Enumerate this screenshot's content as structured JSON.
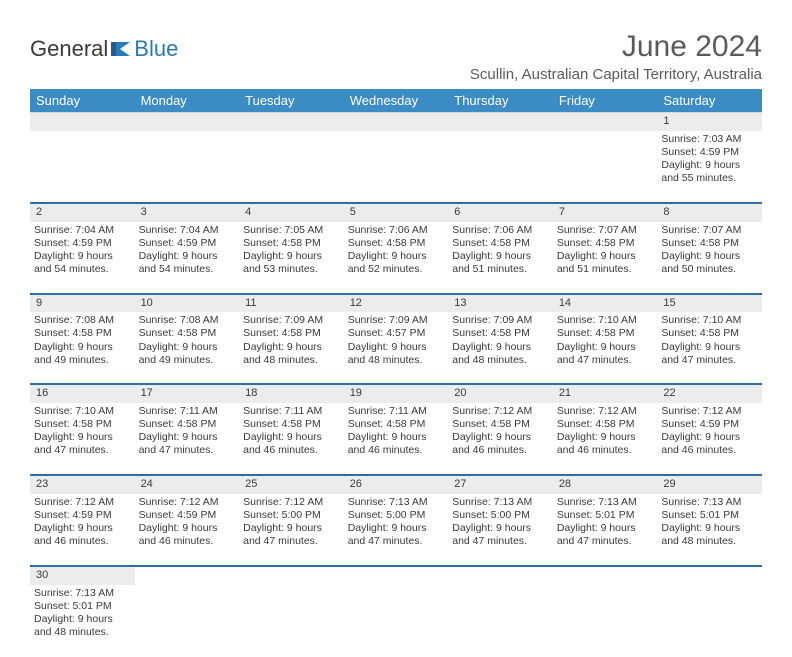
{
  "logo": {
    "text1": "General",
    "text2": "Blue"
  },
  "title": "June 2024",
  "location": "Scullin, Australian Capital Territory, Australia",
  "colors": {
    "header_bg": "#3b8bc4",
    "header_text": "#ffffff",
    "daynum_bg": "#ececec",
    "row_border": "#2a6fa8",
    "text": "#3a3a3a",
    "logo_gray": "#3a3a3a",
    "logo_blue": "#2a7ab8"
  },
  "weekdays": [
    "Sunday",
    "Monday",
    "Tuesday",
    "Wednesday",
    "Thursday",
    "Friday",
    "Saturday"
  ],
  "weeks": [
    [
      null,
      null,
      null,
      null,
      null,
      null,
      {
        "d": "1",
        "sr": "Sunrise: 7:03 AM",
        "ss": "Sunset: 4:59 PM",
        "dl1": "Daylight: 9 hours",
        "dl2": "and 55 minutes."
      }
    ],
    [
      {
        "d": "2",
        "sr": "Sunrise: 7:04 AM",
        "ss": "Sunset: 4:59 PM",
        "dl1": "Daylight: 9 hours",
        "dl2": "and 54 minutes."
      },
      {
        "d": "3",
        "sr": "Sunrise: 7:04 AM",
        "ss": "Sunset: 4:59 PM",
        "dl1": "Daylight: 9 hours",
        "dl2": "and 54 minutes."
      },
      {
        "d": "4",
        "sr": "Sunrise: 7:05 AM",
        "ss": "Sunset: 4:58 PM",
        "dl1": "Daylight: 9 hours",
        "dl2": "and 53 minutes."
      },
      {
        "d": "5",
        "sr": "Sunrise: 7:06 AM",
        "ss": "Sunset: 4:58 PM",
        "dl1": "Daylight: 9 hours",
        "dl2": "and 52 minutes."
      },
      {
        "d": "6",
        "sr": "Sunrise: 7:06 AM",
        "ss": "Sunset: 4:58 PM",
        "dl1": "Daylight: 9 hours",
        "dl2": "and 51 minutes."
      },
      {
        "d": "7",
        "sr": "Sunrise: 7:07 AM",
        "ss": "Sunset: 4:58 PM",
        "dl1": "Daylight: 9 hours",
        "dl2": "and 51 minutes."
      },
      {
        "d": "8",
        "sr": "Sunrise: 7:07 AM",
        "ss": "Sunset: 4:58 PM",
        "dl1": "Daylight: 9 hours",
        "dl2": "and 50 minutes."
      }
    ],
    [
      {
        "d": "9",
        "sr": "Sunrise: 7:08 AM",
        "ss": "Sunset: 4:58 PM",
        "dl1": "Daylight: 9 hours",
        "dl2": "and 49 minutes."
      },
      {
        "d": "10",
        "sr": "Sunrise: 7:08 AM",
        "ss": "Sunset: 4:58 PM",
        "dl1": "Daylight: 9 hours",
        "dl2": "and 49 minutes."
      },
      {
        "d": "11",
        "sr": "Sunrise: 7:09 AM",
        "ss": "Sunset: 4:58 PM",
        "dl1": "Daylight: 9 hours",
        "dl2": "and 48 minutes."
      },
      {
        "d": "12",
        "sr": "Sunrise: 7:09 AM",
        "ss": "Sunset: 4:57 PM",
        "dl1": "Daylight: 9 hours",
        "dl2": "and 48 minutes."
      },
      {
        "d": "13",
        "sr": "Sunrise: 7:09 AM",
        "ss": "Sunset: 4:58 PM",
        "dl1": "Daylight: 9 hours",
        "dl2": "and 48 minutes."
      },
      {
        "d": "14",
        "sr": "Sunrise: 7:10 AM",
        "ss": "Sunset: 4:58 PM",
        "dl1": "Daylight: 9 hours",
        "dl2": "and 47 minutes."
      },
      {
        "d": "15",
        "sr": "Sunrise: 7:10 AM",
        "ss": "Sunset: 4:58 PM",
        "dl1": "Daylight: 9 hours",
        "dl2": "and 47 minutes."
      }
    ],
    [
      {
        "d": "16",
        "sr": "Sunrise: 7:10 AM",
        "ss": "Sunset: 4:58 PM",
        "dl1": "Daylight: 9 hours",
        "dl2": "and 47 minutes."
      },
      {
        "d": "17",
        "sr": "Sunrise: 7:11 AM",
        "ss": "Sunset: 4:58 PM",
        "dl1": "Daylight: 9 hours",
        "dl2": "and 47 minutes."
      },
      {
        "d": "18",
        "sr": "Sunrise: 7:11 AM",
        "ss": "Sunset: 4:58 PM",
        "dl1": "Daylight: 9 hours",
        "dl2": "and 46 minutes."
      },
      {
        "d": "19",
        "sr": "Sunrise: 7:11 AM",
        "ss": "Sunset: 4:58 PM",
        "dl1": "Daylight: 9 hours",
        "dl2": "and 46 minutes."
      },
      {
        "d": "20",
        "sr": "Sunrise: 7:12 AM",
        "ss": "Sunset: 4:58 PM",
        "dl1": "Daylight: 9 hours",
        "dl2": "and 46 minutes."
      },
      {
        "d": "21",
        "sr": "Sunrise: 7:12 AM",
        "ss": "Sunset: 4:58 PM",
        "dl1": "Daylight: 9 hours",
        "dl2": "and 46 minutes."
      },
      {
        "d": "22",
        "sr": "Sunrise: 7:12 AM",
        "ss": "Sunset: 4:59 PM",
        "dl1": "Daylight: 9 hours",
        "dl2": "and 46 minutes."
      }
    ],
    [
      {
        "d": "23",
        "sr": "Sunrise: 7:12 AM",
        "ss": "Sunset: 4:59 PM",
        "dl1": "Daylight: 9 hours",
        "dl2": "and 46 minutes."
      },
      {
        "d": "24",
        "sr": "Sunrise: 7:12 AM",
        "ss": "Sunset: 4:59 PM",
        "dl1": "Daylight: 9 hours",
        "dl2": "and 46 minutes."
      },
      {
        "d": "25",
        "sr": "Sunrise: 7:12 AM",
        "ss": "Sunset: 5:00 PM",
        "dl1": "Daylight: 9 hours",
        "dl2": "and 47 minutes."
      },
      {
        "d": "26",
        "sr": "Sunrise: 7:13 AM",
        "ss": "Sunset: 5:00 PM",
        "dl1": "Daylight: 9 hours",
        "dl2": "and 47 minutes."
      },
      {
        "d": "27",
        "sr": "Sunrise: 7:13 AM",
        "ss": "Sunset: 5:00 PM",
        "dl1": "Daylight: 9 hours",
        "dl2": "and 47 minutes."
      },
      {
        "d": "28",
        "sr": "Sunrise: 7:13 AM",
        "ss": "Sunset: 5:01 PM",
        "dl1": "Daylight: 9 hours",
        "dl2": "and 47 minutes."
      },
      {
        "d": "29",
        "sr": "Sunrise: 7:13 AM",
        "ss": "Sunset: 5:01 PM",
        "dl1": "Daylight: 9 hours",
        "dl2": "and 48 minutes."
      }
    ],
    [
      {
        "d": "30",
        "sr": "Sunrise: 7:13 AM",
        "ss": "Sunset: 5:01 PM",
        "dl1": "Daylight: 9 hours",
        "dl2": "and 48 minutes."
      },
      null,
      null,
      null,
      null,
      null,
      null
    ]
  ]
}
